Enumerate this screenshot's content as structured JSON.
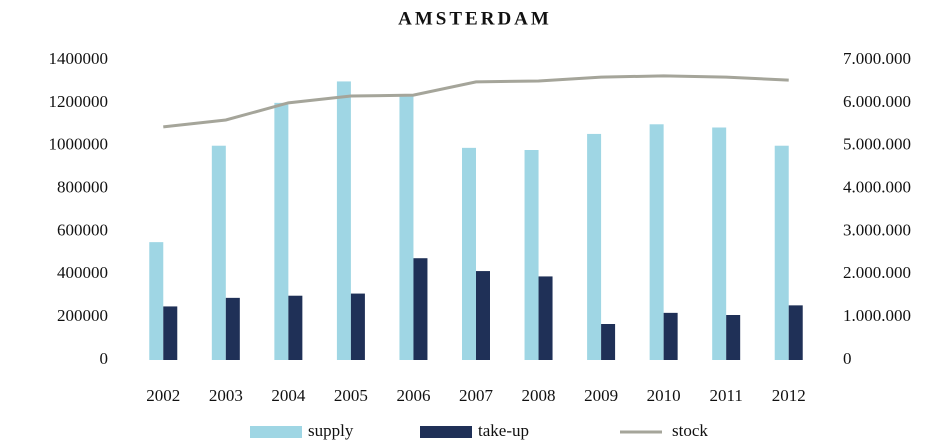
{
  "chart_data": {
    "type": "bar_line",
    "title": "AMSTERDAM",
    "categories": [
      "2002",
      "2003",
      "2004",
      "2005",
      "2006",
      "2007",
      "2008",
      "2009",
      "2010",
      "2011",
      "2012"
    ],
    "series": [
      {
        "name": "supply",
        "color": "#9fd6e4",
        "type": "bar",
        "values": [
          550000,
          1000000,
          1200000,
          1300000,
          1240000,
          990000,
          980000,
          1055000,
          1100000,
          1085000,
          1000000
        ]
      },
      {
        "name": "take-up",
        "color": "#1f3057",
        "type": "bar",
        "values": [
          250000,
          290000,
          300000,
          310000,
          475000,
          415000,
          390000,
          168000,
          220000,
          210000,
          255000
        ]
      },
      {
        "name": "stock",
        "color": "#a5a59a",
        "type": "line",
        "axis": "y2",
        "values": [
          5440000,
          5600000,
          6000000,
          6160000,
          6180000,
          6490000,
          6510000,
          6600000,
          6630000,
          6600000,
          6530000
        ]
      }
    ],
    "ylim": [
      0,
      1400000
    ],
    "yticks": [
      0,
      200000,
      400000,
      600000,
      800000,
      1000000,
      1200000,
      1400000
    ],
    "y2lim": [
      0,
      7000000
    ],
    "y2ticks": [
      0,
      {
        "value": 1000000,
        "label": "1.000.000"
      },
      {
        "value": 2000000,
        "label": "2.000.000"
      },
      {
        "value": 3000000,
        "label": "3.000.000"
      },
      {
        "value": 4000000,
        "label": "4.000.000"
      },
      {
        "value": 5000000,
        "label": "5.000.000"
      },
      {
        "value": 6000000,
        "label": "6.000.000"
      },
      {
        "value": 7000000,
        "label": "7.000.000"
      }
    ],
    "grid": false,
    "legend": "bottom"
  }
}
